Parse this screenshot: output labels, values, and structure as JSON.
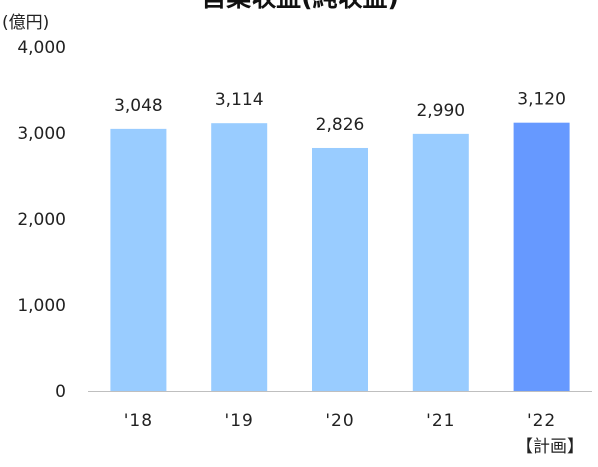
{
  "chart_data": {
    "type": "bar",
    "title": "営業収益(純収益)",
    "unit_label": "(億円)",
    "xlabel": "",
    "ylabel": "",
    "ylim": [
      0,
      4000
    ],
    "yticks": [
      "0",
      "1,000",
      "2,000",
      "3,000",
      "4,000"
    ],
    "categories": [
      "'18",
      "'19",
      "'20",
      "'21",
      "'22"
    ],
    "values": [
      3048,
      3114,
      2826,
      2990,
      3120
    ],
    "value_labels": [
      "3,048",
      "3,114",
      "2,826",
      "2,990",
      "3,120"
    ],
    "plan_label": "【計画】",
    "grid": false,
    "legend": "none",
    "colors": {
      "bar": "#99ccff",
      "highlight_bar": "#6699ff",
      "axis": "#bfbfbf"
    },
    "highlight_index": 4
  }
}
